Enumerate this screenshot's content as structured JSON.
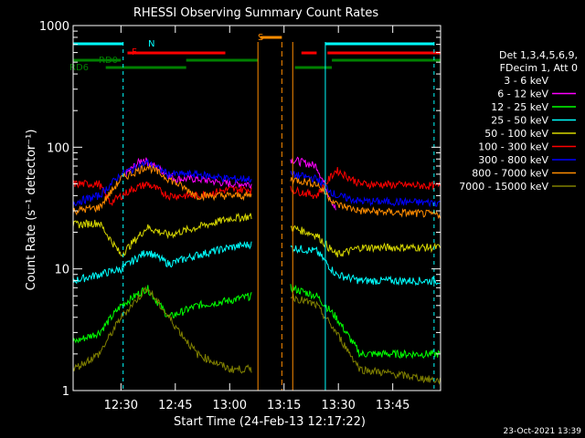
{
  "chart_data": {
    "type": "line",
    "title": "RHESSI Observing Summary Count Rates",
    "xlabel": "Start Time (24-Feb-13 12:17:22)",
    "ylabel": "Count Rate (s⁻¹ detector⁻¹)",
    "yscale": "log",
    "ylim": [
      1,
      1000
    ],
    "xlim_minutes": [
      12.28,
      13.97
    ],
    "x_ticks": [
      "12:30",
      "12:45",
      "13:00",
      "13:15",
      "13:30",
      "13:45"
    ],
    "y_ticks": [
      "1",
      "10",
      "100",
      "1000"
    ],
    "legend_header": [
      "Det 1,3,4,5,6,9,",
      "FDecim 1, Att 0"
    ],
    "legend_position": "right",
    "series": [
      {
        "name": "3 - 6 keV",
        "color": "#000000"
      },
      {
        "name": "6 - 12 keV",
        "color": "#ff00ff"
      },
      {
        "name": "12 - 25 keV",
        "color": "#00ff00"
      },
      {
        "name": "25 - 50 keV",
        "color": "#00ffff"
      },
      {
        "name": "50 - 100 keV",
        "color": "#d7d700"
      },
      {
        "name": "100 - 300 keV",
        "color": "#ff0000"
      },
      {
        "name": "300 - 800 keV",
        "color": "#0000ff"
      },
      {
        "name": "800 - 7000 keV",
        "color": "#ff8c00"
      },
      {
        "name": "7000 - 15000 keV",
        "color": "#808000"
      }
    ],
    "flags": [
      {
        "label": "N",
        "color": "#00ffff"
      },
      {
        "label": "F",
        "color": "#ff0000"
      },
      {
        "label": "S",
        "color": "#ff8c00"
      },
      {
        "label": "RD0",
        "color": "#008000"
      },
      {
        "label": "RD6",
        "color": "#008000"
      }
    ]
  },
  "timestamp": "23-Oct-2021 13:39"
}
